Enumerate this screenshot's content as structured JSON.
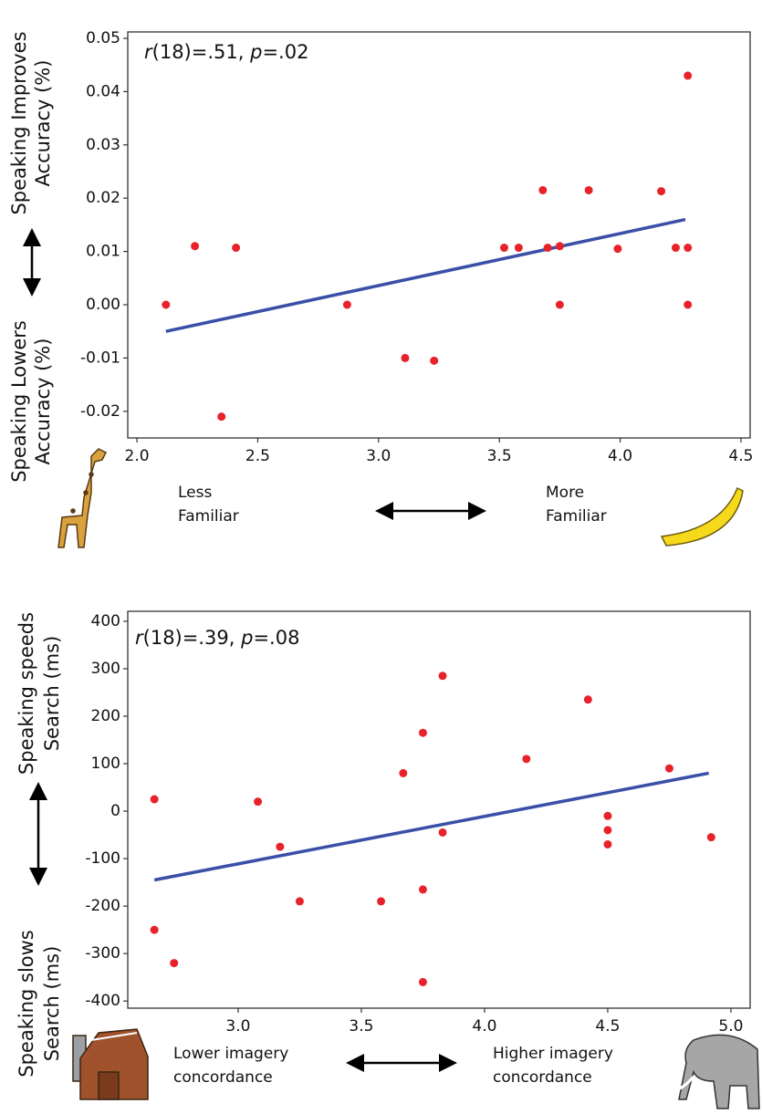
{
  "chart_data": [
    {
      "type": "scatter",
      "annotation": [
        {
          "text": "r",
          "italic": true
        },
        {
          "text": "(18)=.51, "
        },
        {
          "text": "p",
          "italic": true
        },
        {
          "text": "=.02"
        }
      ],
      "y_label_top": [
        "Speaking Improves",
        "Accuracy (%)"
      ],
      "y_label_bottom": [
        "Speaking Lowers",
        "Accuracy (%)"
      ],
      "x_label_left": [
        "Less",
        "Familiar"
      ],
      "x_label_right": [
        "More",
        "Familiar"
      ],
      "x": [
        2.12,
        2.24,
        2.41,
        2.35,
        2.87,
        3.11,
        3.23,
        3.52,
        3.58,
        3.68,
        3.7,
        3.75,
        3.75,
        3.87,
        3.99,
        4.17,
        4.23,
        4.28,
        4.28,
        4.28
      ],
      "series": [
        {
          "color": "#e8222a",
          "values": [
            0.0,
            0.011,
            0.0107,
            -0.021,
            0.0,
            -0.01,
            -0.0105,
            0.0107,
            0.0107,
            0.0215,
            0.0107,
            0.011,
            0.0,
            0.0215,
            0.0105,
            0.0213,
            0.0107,
            0.0107,
            0.043,
            0.0
          ]
        }
      ],
      "trendline": {
        "color": "#3a4fa8",
        "x": [
          2.12,
          4.27
        ],
        "y": [
          -0.005,
          0.016
        ]
      },
      "xlim": [
        1.962,
        4.538
      ],
      "xticks": [
        {
          "value": 2.0,
          "label": "2.0"
        },
        2.5,
        {
          "value": 3.0,
          "label": "3.0"
        },
        3.5,
        {
          "value": 4.0,
          "label": "4.0"
        },
        4.5
      ],
      "ylim": [
        -0.025,
        0.0512
      ],
      "yticks": [
        {
          "value": -0.02,
          "label": "-0.02"
        },
        {
          "value": -0.01,
          "label": "-0.01"
        },
        {
          "value": 0.0,
          "label": "0.00"
        },
        0.01,
        0.02,
        0.03,
        0.04,
        0.05
      ]
    },
    {
      "type": "scatter",
      "annotation": [
        {
          "text": "r",
          "italic": true
        },
        {
          "text": "(18)=.39, "
        },
        {
          "text": "p",
          "italic": true
        },
        {
          "text": "=.08"
        }
      ],
      "y_label_top": [
        "Speaking speeds",
        "Search (ms)"
      ],
      "y_label_bottom": [
        "Speaking slows",
        "Search (ms)"
      ],
      "x_label_left": [
        "Lower imagery",
        "concordance"
      ],
      "x_label_right": [
        "Higher imagery",
        "concordance"
      ],
      "x": [
        2.66,
        2.66,
        2.74,
        3.08,
        3.17,
        3.25,
        3.58,
        3.67,
        3.75,
        3.75,
        3.75,
        3.83,
        3.83,
        4.17,
        4.42,
        4.5,
        4.5,
        4.5,
        4.75,
        4.92
      ],
      "series": [
        {
          "color": "#e8222a",
          "values": [
            25,
            -250,
            -320,
            20,
            -75,
            -190,
            -190,
            80,
            165,
            -165,
            -360,
            285,
            -45,
            110,
            235,
            -10,
            -40,
            -70,
            90,
            -55
          ]
        }
      ],
      "trendline": {
        "color": "#3a4fa8",
        "x": [
          2.66,
          4.91
        ],
        "y": [
          -145,
          80
        ]
      },
      "xlim": [
        2.552,
        5.078
      ],
      "xticks": [
        {
          "value": 3.0,
          "label": "3.0"
        },
        3.5,
        {
          "value": 4.0,
          "label": "4.0"
        },
        4.5,
        {
          "value": 5.0,
          "label": "5.0"
        }
      ],
      "ylim": [
        -415,
        421
      ],
      "yticks": [
        -400,
        -300,
        -200,
        -100,
        0,
        100,
        200,
        300,
        400
      ]
    }
  ]
}
